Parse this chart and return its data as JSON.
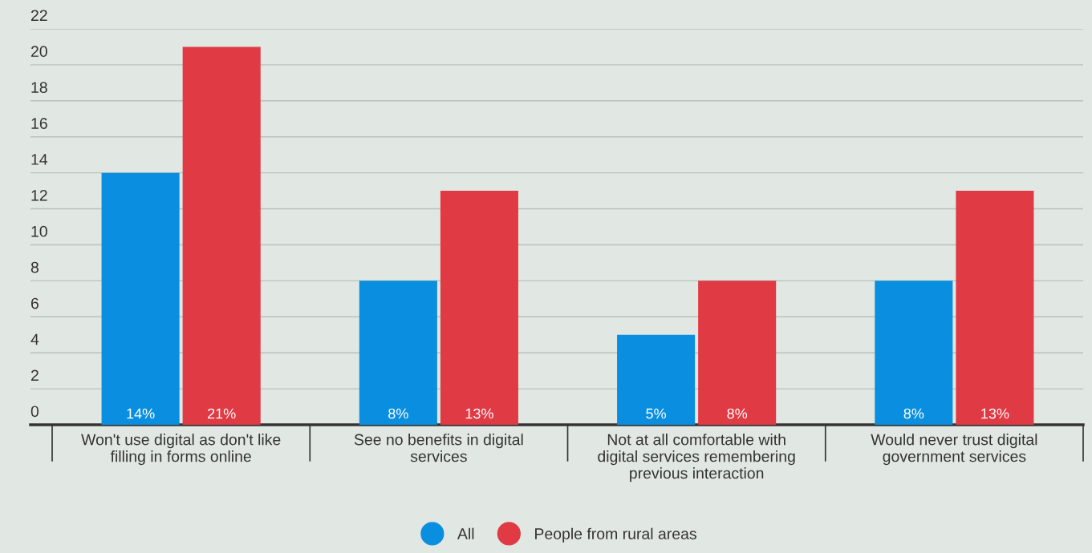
{
  "chart_data": {
    "type": "bar",
    "categories": [
      "Won't use digital as don't like\nfilling in forms online",
      "See no benefits in digital\nservices",
      "Not at all comfortable with\ndigital services remembering\nprevious interaction",
      "Would never trust digital\ngovernment services"
    ],
    "series": [
      {
        "name": "All",
        "color": "#0a8fe0",
        "values": [
          14,
          8,
          5,
          8
        ],
        "value_labels": [
          "14%",
          "8%",
          "5%",
          "8%"
        ]
      },
      {
        "name": "People from rural areas",
        "color": "#e03a44",
        "values": [
          21,
          13,
          8,
          13
        ],
        "value_labels": [
          "21%",
          "13%",
          "8%",
          "13%"
        ]
      }
    ],
    "ylim": [
      0,
      22
    ],
    "yticks": [
      0,
      2,
      4,
      6,
      8,
      10,
      12,
      14,
      16,
      18,
      20,
      22
    ],
    "grid": "y",
    "legend": "bottom"
  }
}
